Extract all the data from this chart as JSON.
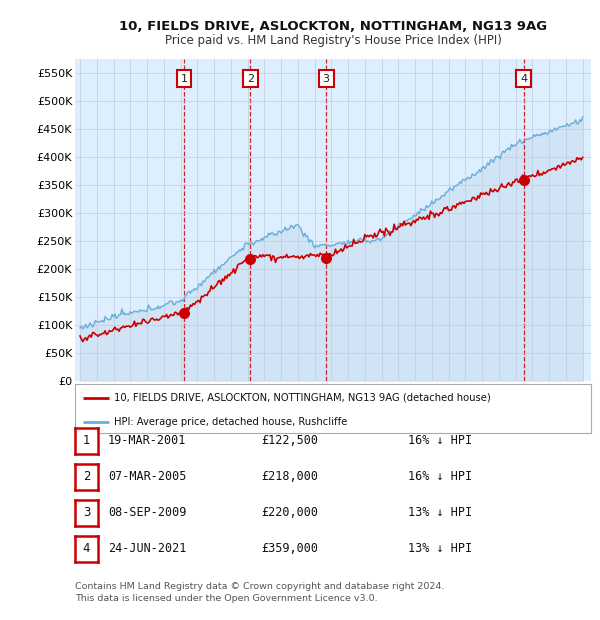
{
  "title": "10, FIELDS DRIVE, ASLOCKTON, NOTTINGHAM, NG13 9AG",
  "subtitle": "Price paid vs. HM Land Registry's House Price Index (HPI)",
  "ylim": [
    0,
    575000
  ],
  "yticks": [
    0,
    50000,
    100000,
    150000,
    200000,
    250000,
    300000,
    350000,
    400000,
    450000,
    500000,
    550000
  ],
  "ytick_labels": [
    "£0",
    "£50K",
    "£100K",
    "£150K",
    "£200K",
    "£250K",
    "£300K",
    "£350K",
    "£400K",
    "£450K",
    "£500K",
    "£550K"
  ],
  "hpi_color": "#6baed6",
  "hpi_fill_color": "#c6dbef",
  "price_color": "#cc0000",
  "marker_color": "#cc0000",
  "sale_dates_float": [
    2001.21,
    2005.17,
    2009.69,
    2021.48
  ],
  "sale_prices": [
    122500,
    218000,
    220000,
    359000
  ],
  "sale_labels": [
    "1",
    "2",
    "3",
    "4"
  ],
  "legend_house_label": "10, FIELDS DRIVE, ASLOCKTON, NOTTINGHAM, NG13 9AG (detached house)",
  "legend_hpi_label": "HPI: Average price, detached house, Rushcliffe",
  "table_data": [
    [
      "1",
      "19-MAR-2001",
      "£122,500",
      "16% ↓ HPI"
    ],
    [
      "2",
      "07-MAR-2005",
      "£218,000",
      "16% ↓ HPI"
    ],
    [
      "3",
      "08-SEP-2009",
      "£220,000",
      "13% ↓ HPI"
    ],
    [
      "4",
      "24-JUN-2021",
      "£359,000",
      "13% ↓ HPI"
    ]
  ],
  "footer": "Contains HM Land Registry data © Crown copyright and database right 2024.\nThis data is licensed under the Open Government Licence v3.0.",
  "bg_color": "#ffffff",
  "chart_bg_color": "#ddeeff",
  "grid_color": "#bbccdd"
}
